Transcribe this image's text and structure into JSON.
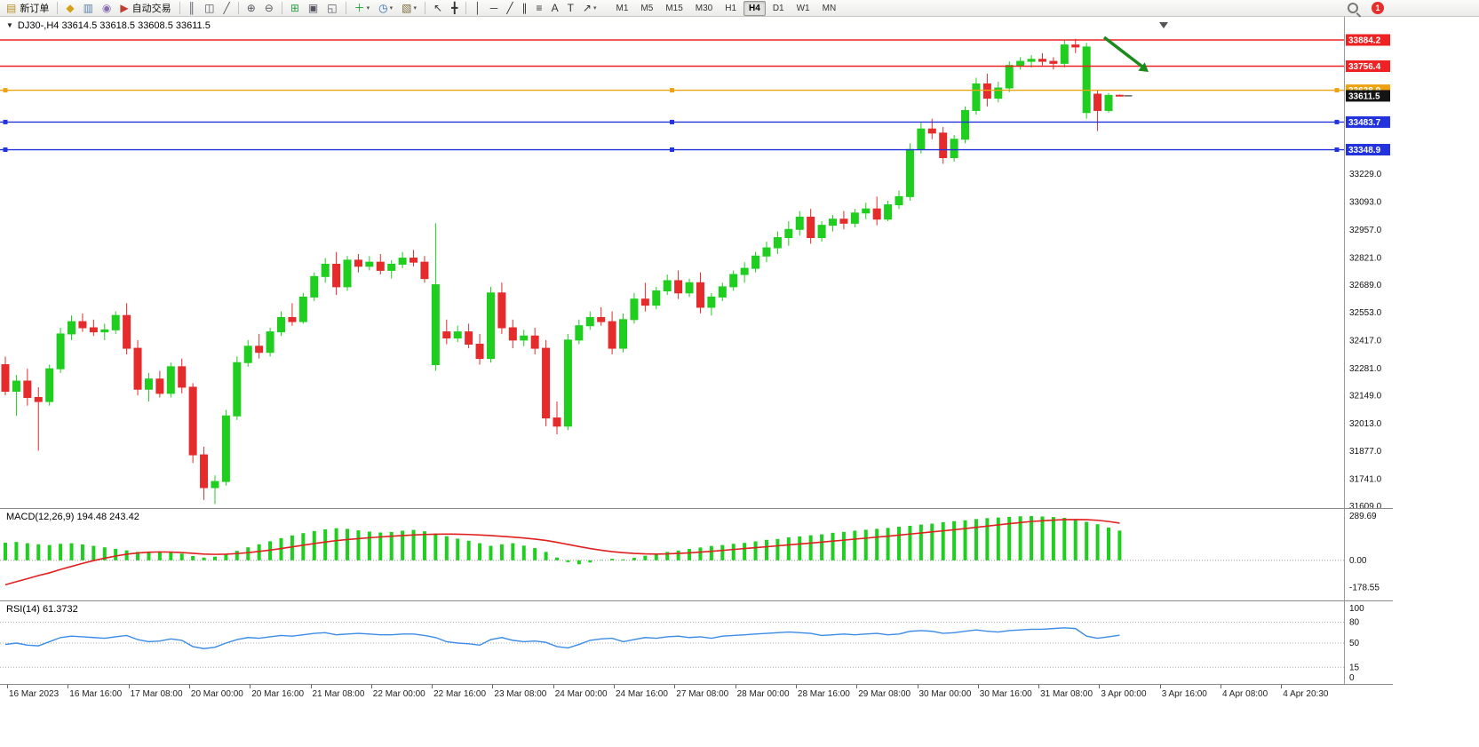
{
  "icons": {
    "one_click_toggle": "▼"
  },
  "toolbar": {
    "notification_count": "1",
    "timeframes": [
      "M1",
      "M5",
      "M15",
      "M30",
      "H1",
      "H4",
      "D1",
      "W1",
      "MN"
    ],
    "active_timeframe": "H4",
    "buttons": [
      {
        "name": "new-order-button",
        "icon": "new-order-icon",
        "glyph": "▤",
        "color": "#b98f27",
        "label": "新订单"
      },
      {
        "sep": true
      },
      {
        "name": "market-watch-button",
        "icon": "market-icon",
        "glyph": "◆",
        "color": "#d4a017"
      },
      {
        "name": "data-window-button",
        "icon": "data-window-icon",
        "glyph": "▥",
        "color": "#5b7fa6"
      },
      {
        "name": "navigator-button",
        "icon": "navigator-icon",
        "glyph": "◉",
        "color": "#8a6fb0"
      },
      {
        "name": "auto-trading-button",
        "icon": "autotrading-icon",
        "glyph": "▶",
        "color": "#c43b2e",
        "label": "自动交易"
      },
      {
        "sep": true
      },
      {
        "name": "bar-chart-button",
        "icon": "bar-chart-icon",
        "glyph": "║",
        "color": "#555560"
      },
      {
        "name": "candlestick-chart-button",
        "icon": "candlestick-chart-icon",
        "glyph": "◫",
        "color": "#555560"
      },
      {
        "name": "line-chart-button",
        "icon": "line-chart-icon",
        "glyph": "╱",
        "color": "#555560"
      },
      {
        "sep": true
      },
      {
        "name": "zoom-in-button",
        "icon": "zoom-in-icon",
        "glyph": "⊕",
        "color": "#555560"
      },
      {
        "name": "zoom-out-button",
        "icon": "zoom-out-icon",
        "glyph": "⊖",
        "color": "#555560"
      },
      {
        "sep": true
      },
      {
        "name": "tile-windows-button",
        "icon": "tile-windows-icon",
        "glyph": "⊞",
        "color": "#2f9e44"
      },
      {
        "name": "arrange-windows-button",
        "icon": "arrange-windows-icon",
        "glyph": "▣",
        "color": "#555560"
      },
      {
        "name": "cascade-windows-button",
        "icon": "cascade-windows-icon",
        "glyph": "◱",
        "color": "#555560"
      },
      {
        "sep": true
      },
      {
        "name": "indicators-button",
        "icon": "indicators-icon",
        "glyph": "＋",
        "color": "#1d9e33",
        "caret": true
      },
      {
        "name": "periods-button",
        "icon": "periods-icon",
        "glyph": "◷",
        "color": "#2a6db5",
        "caret": true
      },
      {
        "name": "templates-button",
        "icon": "templates-icon",
        "glyph": "▧",
        "color": "#7d6b3a",
        "caret": true
      },
      {
        "sep": true
      },
      {
        "name": "cursor-button",
        "icon": "cursor-icon",
        "glyph": "↖",
        "color": "#333"
      },
      {
        "name": "crosshair-button",
        "icon": "crosshair-icon",
        "glyph": "╋",
        "color": "#333"
      },
      {
        "sep": true
      },
      {
        "name": "vertical-line-button",
        "icon": "vertical-line-icon",
        "glyph": "│",
        "color": "#333"
      },
      {
        "name": "horizontal-line-button",
        "icon": "horizontal-line-icon",
        "glyph": "─",
        "color": "#333"
      },
      {
        "name": "trendline-button",
        "icon": "trendline-icon",
        "glyph": "╱",
        "color": "#333"
      },
      {
        "name": "channel-button",
        "icon": "channel-icon",
        "glyph": "∥",
        "color": "#333"
      },
      {
        "name": "fibonacci-button",
        "icon": "fibonacci-icon",
        "glyph": "≡",
        "color": "#333"
      },
      {
        "name": "text-button",
        "icon": "text-icon",
        "glyph": "A",
        "color": "#333"
      },
      {
        "name": "label-button",
        "icon": "label-icon",
        "glyph": "T",
        "color": "#333"
      },
      {
        "name": "shapes-button",
        "icon": "shapes-icon",
        "glyph": "↗",
        "color": "#333",
        "caret": true
      }
    ]
  },
  "chart_header": {
    "title": "DJ30-,H4  33614.5 33618.5 33608.5 33611.5"
  },
  "chart_data": {
    "type": "candlestick",
    "symbol": "DJ30-",
    "period": "H4",
    "last_ohlc": {
      "open": 33614.5,
      "high": 33618.5,
      "low": 33608.5,
      "close": 33611.5
    },
    "current_price": 33611.5,
    "up_color": "#1fce1f",
    "down_color": "#e52b2b",
    "price_axis_labels": [
      33229.0,
      33093.0,
      32957.0,
      32821.0,
      32689.0,
      32553.0,
      32417.0,
      32281.0,
      32149.0,
      32013.0,
      31877.0,
      31741.0,
      31609.0
    ],
    "hlines": [
      {
        "price": 33884.2,
        "color": "#ee2222",
        "type": "resistance",
        "handles": false
      },
      {
        "price": 33756.4,
        "color": "#ee2222",
        "type": "resistance",
        "handles": false
      },
      {
        "price": 33638.9,
        "color": "#eda211",
        "type": "level",
        "handles": true
      },
      {
        "price": 33483.7,
        "color": "#2233dd",
        "type": "support",
        "handles": true
      },
      {
        "price": 33348.9,
        "color": "#2233dd",
        "type": "support",
        "handles": true
      }
    ],
    "annotation_arrow": {
      "color": "#1c8a1c",
      "direction": "down-right"
    },
    "candles": [
      [
        32300,
        32340,
        32150,
        32170
      ],
      [
        32170,
        32250,
        32050,
        32220
      ],
      [
        32220,
        32280,
        32100,
        32140
      ],
      [
        32140,
        32190,
        31880,
        32120
      ],
      [
        32120,
        32300,
        32100,
        32280
      ],
      [
        32280,
        32480,
        32260,
        32450
      ],
      [
        32450,
        32540,
        32420,
        32510
      ],
      [
        32510,
        32550,
        32460,
        32480
      ],
      [
        32480,
        32520,
        32440,
        32460
      ],
      [
        32460,
        32500,
        32420,
        32470
      ],
      [
        32470,
        32560,
        32450,
        32540
      ],
      [
        32540,
        32600,
        32350,
        32380
      ],
      [
        32380,
        32420,
        32150,
        32180
      ],
      [
        32180,
        32260,
        32120,
        32230
      ],
      [
        32230,
        32270,
        32140,
        32160
      ],
      [
        32160,
        32310,
        32140,
        32290
      ],
      [
        32290,
        32330,
        32160,
        32190
      ],
      [
        32190,
        32210,
        31820,
        31860
      ],
      [
        31860,
        31900,
        31640,
        31700
      ],
      [
        31700,
        31760,
        31620,
        31730
      ],
      [
        31730,
        32080,
        31710,
        32050
      ],
      [
        32050,
        32340,
        32030,
        32310
      ],
      [
        32310,
        32420,
        32290,
        32390
      ],
      [
        32390,
        32450,
        32330,
        32360
      ],
      [
        32360,
        32480,
        32340,
        32460
      ],
      [
        32460,
        32560,
        32440,
        32530
      ],
      [
        32530,
        32600,
        32490,
        32510
      ],
      [
        32510,
        32650,
        32500,
        32630
      ],
      [
        32630,
        32750,
        32610,
        32730
      ],
      [
        32730,
        32820,
        32700,
        32790
      ],
      [
        32790,
        32850,
        32640,
        32680
      ],
      [
        32680,
        32830,
        32660,
        32810
      ],
      [
        32810,
        32840,
        32750,
        32780
      ],
      [
        32780,
        32830,
        32760,
        32800
      ],
      [
        32800,
        32840,
        32740,
        32760
      ],
      [
        32760,
        32810,
        32720,
        32790
      ],
      [
        32790,
        32850,
        32770,
        32820
      ],
      [
        32820,
        32860,
        32780,
        32800
      ],
      [
        32800,
        32830,
        32700,
        32720
      ],
      [
        32300,
        32990,
        32270,
        32690
      ],
      [
        32460,
        32520,
        32400,
        32430
      ],
      [
        32430,
        32490,
        32410,
        32460
      ],
      [
        32460,
        32500,
        32380,
        32400
      ],
      [
        32400,
        32450,
        32300,
        32330
      ],
      [
        32330,
        32680,
        32310,
        32650
      ],
      [
        32650,
        32700,
        32450,
        32480
      ],
      [
        32480,
        32520,
        32380,
        32420
      ],
      [
        32420,
        32470,
        32390,
        32440
      ],
      [
        32440,
        32480,
        32350,
        32380
      ],
      [
        32380,
        32420,
        32000,
        32040
      ],
      [
        32040,
        32120,
        31960,
        32000
      ],
      [
        32000,
        32450,
        31980,
        32420
      ],
      [
        32420,
        32520,
        32400,
        32490
      ],
      [
        32490,
        32560,
        32470,
        32530
      ],
      [
        32530,
        32580,
        32490,
        32510
      ],
      [
        32510,
        32560,
        32350,
        32380
      ],
      [
        32380,
        32550,
        32360,
        32520
      ],
      [
        32520,
        32650,
        32500,
        32620
      ],
      [
        32620,
        32700,
        32560,
        32590
      ],
      [
        32590,
        32680,
        32570,
        32660
      ],
      [
        32660,
        32740,
        32640,
        32710
      ],
      [
        32710,
        32760,
        32620,
        32650
      ],
      [
        32650,
        32720,
        32630,
        32700
      ],
      [
        32700,
        32750,
        32550,
        32580
      ],
      [
        32580,
        32650,
        32540,
        32630
      ],
      [
        32630,
        32700,
        32610,
        32680
      ],
      [
        32680,
        32760,
        32660,
        32740
      ],
      [
        32740,
        32800,
        32700,
        32770
      ],
      [
        32770,
        32850,
        32750,
        32830
      ],
      [
        32830,
        32900,
        32800,
        32870
      ],
      [
        32870,
        32950,
        32840,
        32920
      ],
      [
        32920,
        33000,
        32880,
        32960
      ],
      [
        32960,
        33050,
        32930,
        33020
      ],
      [
        33020,
        33060,
        32890,
        32920
      ],
      [
        32920,
        33000,
        32900,
        32980
      ],
      [
        32980,
        33030,
        32950,
        33010
      ],
      [
        33010,
        33050,
        32960,
        32990
      ],
      [
        32990,
        33060,
        32970,
        33040
      ],
      [
        33040,
        33090,
        33010,
        33060
      ],
      [
        33060,
        33120,
        32980,
        33010
      ],
      [
        33010,
        33100,
        33000,
        33080
      ],
      [
        33080,
        33150,
        33060,
        33120
      ],
      [
        33120,
        33380,
        33100,
        33350
      ],
      [
        33350,
        33480,
        33330,
        33450
      ],
      [
        33450,
        33500,
        33400,
        33430
      ],
      [
        33430,
        33460,
        33280,
        33310
      ],
      [
        33310,
        33420,
        33290,
        33400
      ],
      [
        33400,
        33560,
        33380,
        33540
      ],
      [
        33540,
        33700,
        33520,
        33670
      ],
      [
        33670,
        33720,
        33560,
        33600
      ],
      [
        33600,
        33680,
        33580,
        33650
      ],
      [
        33650,
        33780,
        33630,
        33760
      ],
      [
        33760,
        33800,
        33740,
        33780
      ],
      [
        33780,
        33810,
        33750,
        33790
      ],
      [
        33790,
        33820,
        33760,
        33780
      ],
      [
        33780,
        33800,
        33740,
        33770
      ],
      [
        33770,
        33884,
        33750,
        33860
      ],
      [
        33860,
        33890,
        33820,
        33850
      ],
      [
        33530,
        33870,
        33500,
        33850
      ],
      [
        33620,
        33640,
        33440,
        33540
      ],
      [
        33540,
        33625,
        33530,
        33614
      ],
      [
        33614.5,
        33618.5,
        33608.5,
        33611.5
      ]
    ],
    "time_labels": [
      "16 Mar 2023",
      "16 Mar 16:00",
      "17 Mar 08:00",
      "20 Mar 00:00",
      "20 Mar 16:00",
      "21 Mar 08:00",
      "22 Mar 00:00",
      "22 Mar 16:00",
      "23 Mar 08:00",
      "24 Mar 00:00",
      "24 Mar 16:00",
      "27 Mar 08:00",
      "28 Mar 00:00",
      "28 Mar 16:00",
      "29 Mar 08:00",
      "30 Mar 00:00",
      "30 Mar 16:00",
      "31 Mar 08:00",
      "3 Apr 00:00",
      "3 Apr 16:00",
      "4 Apr 08:00",
      "4 Apr 20:30"
    ],
    "macd": {
      "label": "MACD(12,26,9) 194.48 243.42",
      "params": "12,26,9",
      "value": 194.48,
      "signal_value": 243.42,
      "axis_labels": [
        289.69,
        0.0,
        -178.55
      ],
      "histogram_color": "#1fce1f",
      "signal_color": "#e02020",
      "histogram": [
        115,
        120,
        112,
        105,
        100,
        108,
        112,
        104,
        95,
        85,
        75,
        65,
        55,
        50,
        58,
        54,
        44,
        28,
        18,
        24,
        40,
        62,
        85,
        105,
        125,
        145,
        163,
        178,
        192,
        203,
        210,
        206,
        196,
        188,
        182,
        186,
        194,
        199,
        190,
        176,
        158,
        142,
        128,
        112,
        95,
        105,
        112,
        96,
        80,
        55,
        18,
        -12,
        -26,
        -14,
        2,
        10,
        6,
        16,
        30,
        45,
        55,
        64,
        74,
        84,
        94,
        100,
        108,
        114,
        124,
        134,
        140,
        150,
        156,
        164,
        170,
        180,
        186,
        194,
        200,
        206,
        212,
        220,
        226,
        234,
        240,
        250,
        256,
        262,
        270,
        276,
        280,
        284,
        288,
        289.69,
        287,
        283,
        278,
        268,
        252,
        236,
        215,
        194.48
      ],
      "signal": [
        -160,
        -140,
        -120,
        -100,
        -82,
        -60,
        -40,
        -20,
        -2,
        14,
        28,
        40,
        48,
        53,
        55,
        54,
        51,
        46,
        41,
        39,
        40,
        44,
        50,
        58,
        67,
        77,
        88,
        99,
        110,
        120,
        129,
        136,
        142,
        148,
        153,
        158,
        162,
        166,
        169,
        171,
        172,
        171,
        169,
        166,
        162,
        157,
        152,
        146,
        139,
        130,
        118,
        104,
        90,
        77,
        66,
        57,
        50,
        45,
        42,
        41,
        42,
        45,
        49,
        54,
        59,
        65,
        71,
        77,
        83,
        89,
        95,
        101,
        107,
        113,
        119,
        126,
        132,
        139,
        145,
        152,
        158,
        165,
        172,
        179,
        186,
        193,
        200,
        208,
        216,
        224,
        232,
        240,
        247,
        254,
        259,
        263,
        266,
        267,
        266,
        262,
        254,
        243.42
      ]
    },
    "rsi": {
      "label": "RSI(14) 61.3732",
      "value": 61.3732,
      "axis_labels": [
        100,
        80,
        50,
        15,
        0
      ],
      "levels": [
        80,
        50,
        15
      ],
      "line_color": "#3c8ce6",
      "values": [
        48,
        50,
        47,
        46,
        52,
        58,
        60,
        59,
        58,
        57,
        59,
        61,
        55,
        52,
        53,
        56,
        54,
        45,
        42,
        44,
        50,
        55,
        58,
        57,
        59,
        61,
        60,
        62,
        64,
        65,
        62,
        63,
        64,
        63,
        62,
        62,
        63,
        63,
        61,
        58,
        52,
        50,
        49,
        47,
        55,
        58,
        54,
        52,
        53,
        51,
        45,
        43,
        48,
        54,
        56,
        57,
        52,
        55,
        58,
        57,
        59,
        60,
        58,
        59,
        57,
        60,
        61,
        62,
        63,
        64,
        65,
        66,
        65,
        64,
        61,
        62,
        63,
        62,
        63,
        64,
        62,
        63,
        67,
        68,
        67,
        64,
        65,
        67,
        69,
        67,
        66,
        68,
        69,
        70,
        70,
        71,
        72,
        71,
        60,
        57,
        59,
        61.37
      ]
    }
  }
}
